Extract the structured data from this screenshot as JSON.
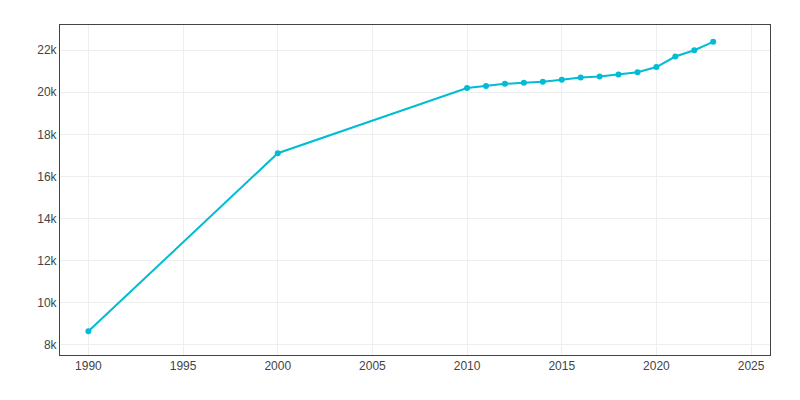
{
  "chart_data": {
    "type": "line",
    "x": [
      1990,
      2000,
      2010,
      2011,
      2012,
      2013,
      2014,
      2015,
      2016,
      2017,
      2018,
      2019,
      2020,
      2021,
      2022,
      2023
    ],
    "values": [
      8625,
      17100,
      20200,
      20300,
      20400,
      20450,
      20500,
      20600,
      20700,
      20750,
      20850,
      20950,
      21200,
      21700,
      22000,
      22400
    ],
    "color": "#00bcd4",
    "marker": "circle",
    "xlim": [
      1988.5,
      2026
    ],
    "ylim": [
      7500,
      23200
    ],
    "xticks": [
      1990,
      1995,
      2000,
      2005,
      2010,
      2015,
      2020,
      2025
    ],
    "yticks": [
      {
        "value": 8000,
        "label": "8k"
      },
      {
        "value": 10000,
        "label": "10k"
      },
      {
        "value": 12000,
        "label": "12k"
      },
      {
        "value": 14000,
        "label": "14k"
      },
      {
        "value": 16000,
        "label": "16k"
      },
      {
        "value": 18000,
        "label": "18k"
      },
      {
        "value": 20000,
        "label": "20k"
      },
      {
        "value": 22000,
        "label": "22k"
      }
    ],
    "grid": true
  }
}
